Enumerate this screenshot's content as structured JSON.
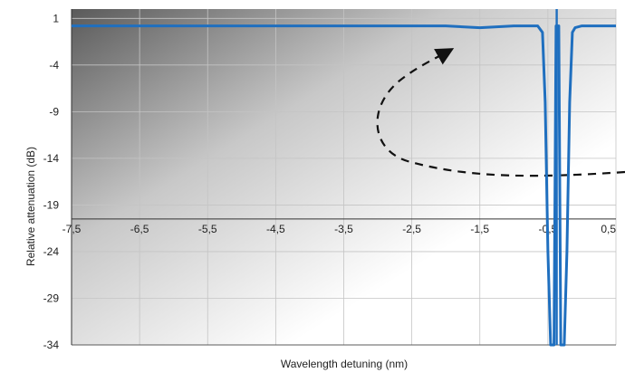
{
  "chart_data": {
    "type": "line",
    "title": "",
    "xlabel": "Wavelength detuning (nm)",
    "ylabel": "Relative attenuation (dB)",
    "xlim": [
      -7.5,
      0.5
    ],
    "ylim": [
      -34,
      2
    ],
    "x_ticks": [
      -7.5,
      -6.5,
      -5.5,
      -4.5,
      -3.5,
      -2.5,
      -1.5,
      -0.5,
      0.5
    ],
    "x_tick_labels": [
      "-7,5",
      "-6,5",
      "-5,5",
      "-4,5",
      "-3,5",
      "-2,5",
      "-1,5",
      "-0,5",
      "0,5"
    ],
    "y_ticks": [
      1,
      -4,
      -9,
      -14,
      -19,
      -24,
      -29,
      -34
    ],
    "y_tick_labels": [
      "1",
      "-4",
      "-9",
      "-14",
      "-19",
      "-24",
      "-29",
      "-34"
    ],
    "x_axis_position": -20.5,
    "grid": true,
    "background": "gray gradient at top-left of plot area",
    "annotations": [
      {
        "type": "dashed curved arrow",
        "direction": "from right edge, curving left and up, pointing toward the baseline near x = -1.6"
      }
    ],
    "series": [
      {
        "color": "#1f6fbf",
        "x": [
          -7.5,
          -6.5,
          -5.5,
          -4.5,
          -3.5,
          -2.5,
          -2.0,
          -1.5,
          -1.0,
          -0.65,
          -0.58,
          -0.54,
          -0.5,
          -0.46,
          -0.41,
          -0.38,
          -0.36,
          -0.34,
          -0.31,
          -0.26,
          -0.22,
          -0.18,
          -0.14,
          -0.1,
          0.0,
          0.2,
          0.5
        ],
        "y": [
          0.2,
          0.2,
          0.2,
          0.2,
          0.2,
          0.2,
          0.2,
          0.0,
          0.2,
          0.2,
          -0.5,
          -8,
          -24,
          -34,
          -34,
          0.2,
          0.2,
          0.2,
          -34,
          -34,
          -24,
          -8,
          -0.5,
          0.0,
          0.2,
          0.2,
          0.2
        ]
      },
      {
        "color": "#1f6fbf",
        "x": [
          -0.37,
          -0.37
        ],
        "y": [
          -34,
          2
        ]
      }
    ]
  }
}
